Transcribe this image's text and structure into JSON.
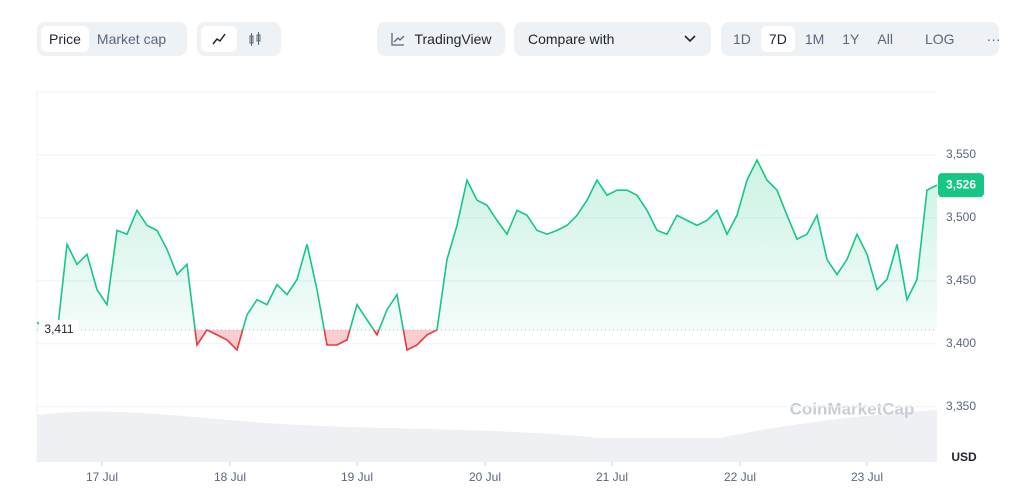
{
  "toolbar": {
    "tabs": [
      "Price",
      "Market cap"
    ],
    "tradingview": "TradingView",
    "compare": "Compare with",
    "ranges": [
      "1D",
      "7D",
      "1M",
      "1Y",
      "All"
    ],
    "log": "LOG",
    "more": "···"
  },
  "chart_data": {
    "type": "line",
    "color": "#16c784",
    "down_color": "#ea3943",
    "values": [
      3417,
      3411,
      3407,
      3479,
      3463,
      3471,
      3443,
      3431,
      3490,
      3487,
      3506,
      3494,
      3490,
      3475,
      3455,
      3463,
      3399,
      3411,
      3407,
      3403,
      3395,
      3423,
      3435,
      3431,
      3447,
      3439,
      3451,
      3479,
      3443,
      3399,
      3399,
      3403,
      3431,
      3419,
      3407,
      3427,
      3439,
      3395,
      3399,
      3407,
      3411,
      3467,
      3494,
      3530,
      3514,
      3510,
      3498,
      3487,
      3506,
      3502,
      3490,
      3487,
      3490,
      3494,
      3502,
      3514,
      3530,
      3518,
      3522,
      3522,
      3518,
      3506,
      3490,
      3487,
      3502,
      3498,
      3494,
      3498,
      3506,
      3487,
      3502,
      3530,
      3546,
      3530,
      3522,
      3502,
      3483,
      3487,
      3502,
      3467,
      3455,
      3467,
      3487,
      3471,
      3443,
      3451,
      3479,
      3435,
      3451,
      3522,
      3526
    ],
    "xlim": [
      0,
      90
    ],
    "xticks": [
      {
        "value": 6.5,
        "label": "17 Jul"
      },
      {
        "value": 19.3,
        "label": "18 Jul"
      },
      {
        "value": 32,
        "label": "19 Jul"
      },
      {
        "value": 44.8,
        "label": "20 Jul"
      },
      {
        "value": 57.5,
        "label": "21 Jul"
      },
      {
        "value": 70.3,
        "label": "22 Jul"
      },
      {
        "value": 83,
        "label": "23 Jul"
      }
    ],
    "ylim": [
      3306,
      3600
    ],
    "yticks": [
      {
        "value": 3350,
        "label": "3,350"
      },
      {
        "value": 3400,
        "label": "3,400"
      },
      {
        "value": 3450,
        "label": "3,450"
      },
      {
        "value": 3500,
        "label": "3,500"
      },
      {
        "value": 3550,
        "label": "3,550"
      }
    ],
    "baseline": {
      "value": 3411,
      "label": "3,411"
    },
    "last": {
      "value": 3526,
      "label": "3,526"
    },
    "y_unit": "USD",
    "watermark": "CoinMarketCap",
    "grid": true
  }
}
